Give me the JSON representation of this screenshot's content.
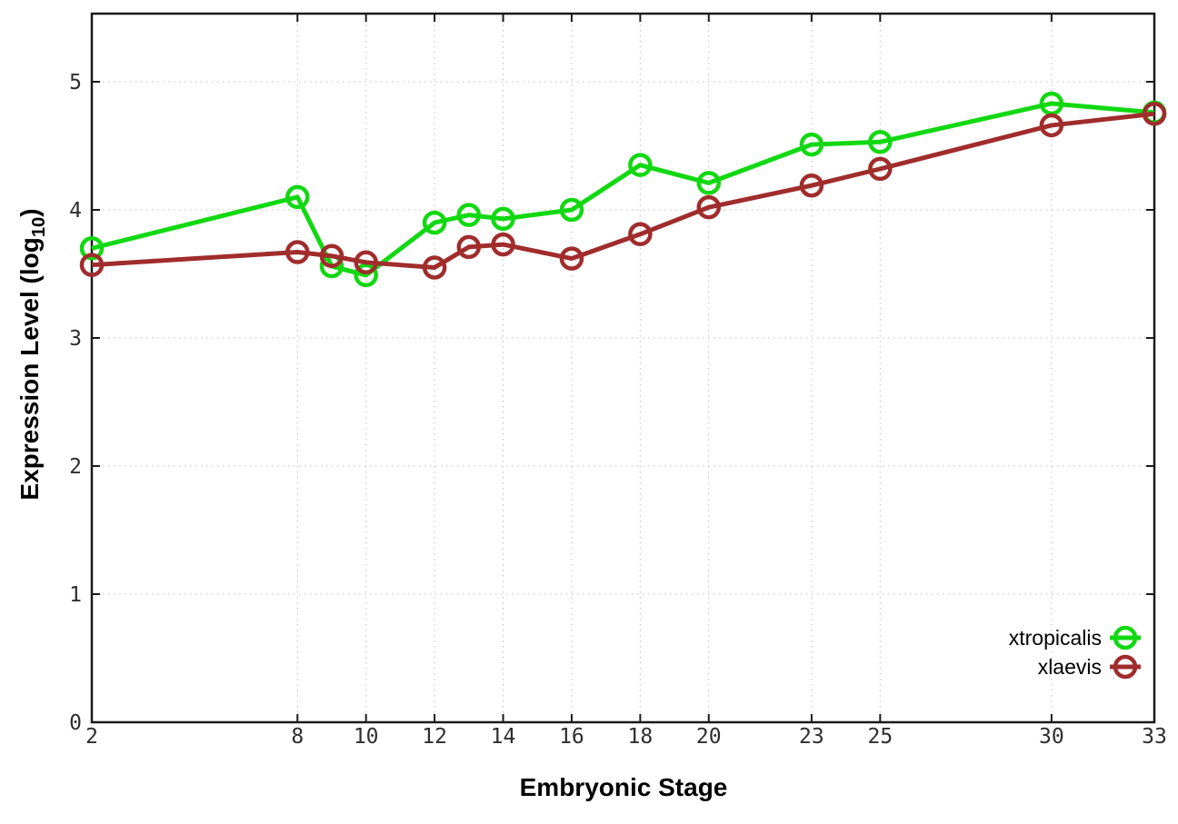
{
  "chart_data": {
    "type": "line",
    "title": "",
    "xlabel": "Embryonic Stage",
    "ylabel": "Expression Level (log10)",
    "ylabel_main": "Expression Level (log",
    "ylabel_sub": "10",
    "ylabel_end": ")",
    "x": [
      2,
      8,
      9,
      10,
      12,
      13,
      14,
      16,
      18,
      20,
      23,
      25,
      30,
      33
    ],
    "xticks": [
      2,
      8,
      10,
      12,
      14,
      16,
      18,
      20,
      23,
      25,
      30,
      33
    ],
    "yticks": [
      0,
      1,
      2,
      3,
      4,
      5
    ],
    "xlim": [
      2,
      33
    ],
    "ylim": [
      0,
      5.53
    ],
    "grid": true,
    "grid_style": "dotted",
    "legend_position": "bottom-right-inside",
    "axis_color": "#1a1a1a",
    "grid_color": "#bdbdbd",
    "tick_label_color": "#2e2e2e",
    "series": [
      {
        "name": "xtropicalis",
        "color": "#12d812",
        "marker": "open-circle",
        "values": [
          3.7,
          4.1,
          3.56,
          3.49,
          3.9,
          3.96,
          3.93,
          4.0,
          4.35,
          4.21,
          4.51,
          4.53,
          4.83,
          4.76
        ]
      },
      {
        "name": "xlaevis",
        "color": "#a02c2c",
        "marker": "open-circle",
        "values": [
          3.57,
          3.67,
          3.64,
          3.59,
          3.55,
          3.71,
          3.73,
          3.62,
          3.81,
          4.02,
          4.19,
          4.32,
          4.66,
          4.75
        ]
      }
    ]
  }
}
